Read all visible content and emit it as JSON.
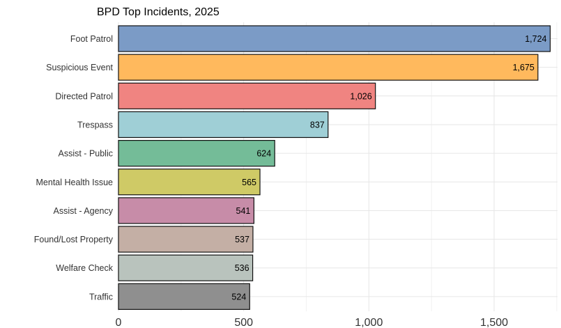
{
  "chart_data": {
    "type": "bar",
    "orientation": "horizontal",
    "title": "BPD Top Incidents, 2025",
    "xlabel": "",
    "ylabel": "",
    "categories": [
      "Foot Patrol",
      "Suspicious Event",
      "Directed Patrol",
      "Trespass",
      "Assist - Public",
      "Mental Health Issue",
      "Assist - Agency",
      "Found/Lost Property",
      "Welfare Check",
      "Traffic"
    ],
    "values": [
      1724,
      1675,
      1026,
      837,
      624,
      565,
      541,
      537,
      536,
      524
    ],
    "value_labels": [
      "1,724",
      "1,675",
      "1,026",
      "837",
      "624",
      "565",
      "541",
      "537",
      "536",
      "524"
    ],
    "colors": [
      "#7b9bc6",
      "#ffb95d",
      "#f08481",
      "#9fcfd6",
      "#74bc98",
      "#cfca66",
      "#c78ca8",
      "#c4afa5",
      "#b9c3bd",
      "#8f8f8f"
    ],
    "xlim": [
      0,
      1750
    ],
    "x_ticks": [
      0,
      500,
      1000,
      1500
    ],
    "x_tick_labels": [
      "0",
      "500",
      "1,000",
      "1,500"
    ],
    "grid": true,
    "legend": "none"
  }
}
